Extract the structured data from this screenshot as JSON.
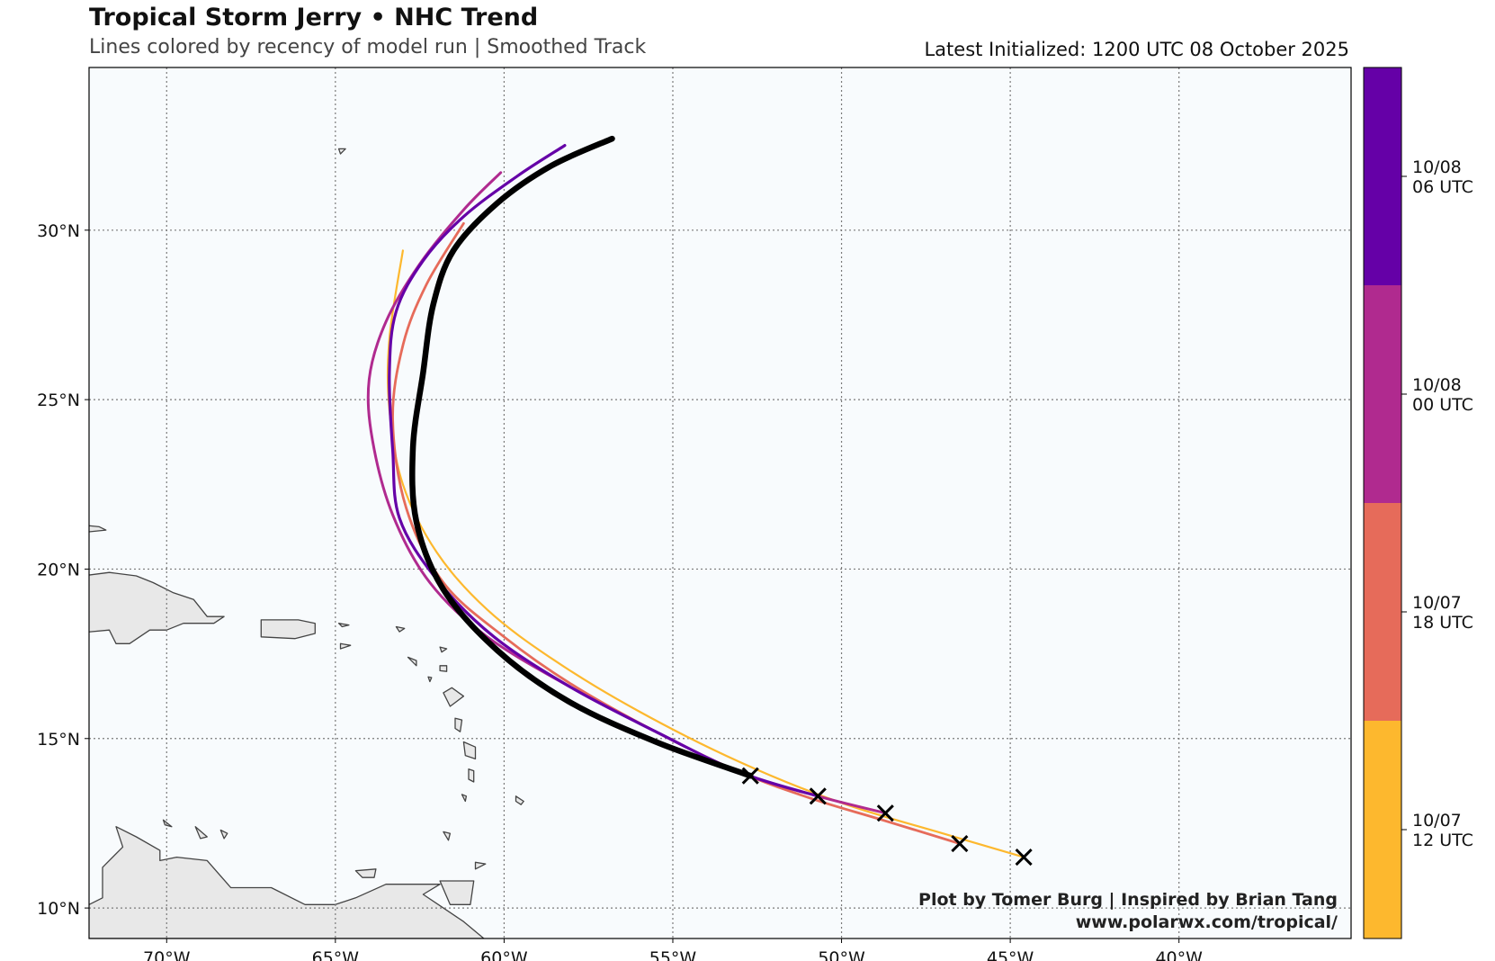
{
  "title": "Tropical Storm Jerry • NHC Trend",
  "subtitle": "Lines colored by recency of model run | Smoothed Track",
  "latest_init": "Latest Initialized: 1200 UTC 08 October 2025",
  "credit": {
    "line1": "Plot by Tomer Burg | Inspired by Brian Tang",
    "line2": "www.polarwx.com/tropical/"
  },
  "map": {
    "lon_range": [
      -72.3,
      -34.9
    ],
    "lat_range": [
      9.1,
      34.8
    ],
    "lon_ticks": [
      {
        "value": -70,
        "label": "70°W"
      },
      {
        "value": -65,
        "label": "65°W"
      },
      {
        "value": -60,
        "label": "60°W"
      },
      {
        "value": -55,
        "label": "55°W"
      },
      {
        "value": -50,
        "label": "50°W"
      },
      {
        "value": -45,
        "label": "45°W"
      },
      {
        "value": -40,
        "label": "40°W"
      }
    ],
    "lat_ticks": [
      {
        "value": 10,
        "label": "10°N"
      },
      {
        "value": 15,
        "label": "15°N"
      },
      {
        "value": 20,
        "label": "20°N"
      },
      {
        "value": 25,
        "label": "25°N"
      },
      {
        "value": 30,
        "label": "30°N"
      }
    ],
    "grid": true,
    "land_color": "#e8e8e8",
    "ocean_color": "#f8fbfd",
    "coast_color": "#444444"
  },
  "colorbar": [
    {
      "line1": "10/07",
      "line2": "12 UTC",
      "color": "#fdb82e"
    },
    {
      "line1": "10/07",
      "line2": "18 UTC",
      "color": "#e66b5a"
    },
    {
      "line1": "10/08",
      "line2": "00 UTC",
      "color": "#b02a8f"
    },
    {
      "line1": "10/08",
      "line2": "06 UTC",
      "color": "#6500a7"
    }
  ],
  "tracks": [
    {
      "color": "#fdb82e",
      "width": 2.2,
      "points": [
        [
          -44.6,
          11.5
        ],
        [
          -47,
          12.2
        ],
        [
          -50,
          13.1
        ],
        [
          -53,
          14.3
        ],
        [
          -56,
          15.8
        ],
        [
          -58.5,
          17.3
        ],
        [
          -60.5,
          18.8
        ],
        [
          -62,
          20.5
        ],
        [
          -63,
          22.5
        ],
        [
          -63.4,
          24.7
        ],
        [
          -63.4,
          26.8
        ],
        [
          -63,
          29.4
        ]
      ]
    },
    {
      "color": "#e66b5a",
      "width": 2.8,
      "points": [
        [
          -46.5,
          11.9
        ],
        [
          -48.8,
          12.6
        ],
        [
          -50.8,
          13.2
        ],
        [
          -53,
          14
        ],
        [
          -55.5,
          15.2
        ],
        [
          -58,
          16.6
        ],
        [
          -60,
          18
        ],
        [
          -61.8,
          19.6
        ],
        [
          -62.9,
          21.8
        ],
        [
          -63.3,
          24.4
        ],
        [
          -63,
          26.6
        ],
        [
          -62.3,
          28.4
        ],
        [
          -61.2,
          30.2
        ]
      ]
    },
    {
      "color": "#b02a8f",
      "width": 3.0,
      "points": [
        [
          -48.7,
          12.8
        ],
        [
          -50.7,
          13.3
        ],
        [
          -53,
          14
        ],
        [
          -55.5,
          15.2
        ],
        [
          -58,
          16.5
        ],
        [
          -60.5,
          18
        ],
        [
          -62.2,
          19.6
        ],
        [
          -63.3,
          21.6
        ],
        [
          -63.9,
          23.8
        ],
        [
          -64,
          25.6
        ],
        [
          -63.5,
          27.3
        ],
        [
          -62.5,
          29
        ],
        [
          -61.2,
          30.6
        ],
        [
          -60.1,
          31.7
        ]
      ]
    },
    {
      "color": "#6500a7",
      "width": 3.2,
      "points": [
        [
          -50.7,
          13.3
        ],
        [
          -53,
          14
        ],
        [
          -55.5,
          15.2
        ],
        [
          -58,
          16.5
        ],
        [
          -60.3,
          18
        ],
        [
          -62,
          19.7
        ],
        [
          -63.1,
          21.5
        ],
        [
          -63.3,
          23.5
        ],
        [
          -63.4,
          25.8
        ],
        [
          -63.2,
          27.6
        ],
        [
          -62.4,
          29.1
        ],
        [
          -61.2,
          30.4
        ],
        [
          -59.6,
          31.6
        ],
        [
          -58.2,
          32.5
        ]
      ]
    },
    {
      "color": "#000000",
      "width": 6.5,
      "points": [
        [
          -52.7,
          13.9
        ],
        [
          -55.5,
          14.9
        ],
        [
          -58.1,
          16.1
        ],
        [
          -60.2,
          17.6
        ],
        [
          -61.8,
          19.4
        ],
        [
          -62.6,
          21.4
        ],
        [
          -62.7,
          23.6
        ],
        [
          -62.4,
          25.8
        ],
        [
          -62.1,
          27.8
        ],
        [
          -61.5,
          29.4
        ],
        [
          -60.2,
          30.8
        ],
        [
          -58.6,
          31.9
        ],
        [
          -56.8,
          32.7
        ]
      ]
    }
  ],
  "positions": [
    [
      -52.7,
      13.9
    ],
    [
      -50.7,
      13.3
    ],
    [
      -48.7,
      12.8
    ],
    [
      -46.5,
      11.9
    ],
    [
      -44.6,
      11.5
    ]
  ]
}
